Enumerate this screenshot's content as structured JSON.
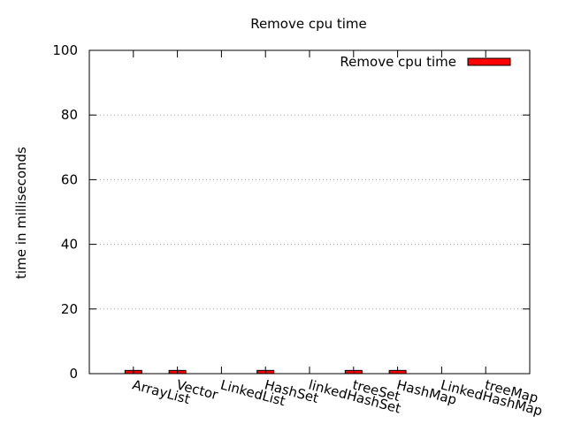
{
  "chart_data": {
    "type": "bar",
    "title": "Remove cpu time",
    "ylabel": "time in milliseconds",
    "xlabel": "",
    "categories": [
      "ArrayList",
      "Vector",
      "LinkedList",
      "HashSet",
      "linkedHashSet",
      "treeSet",
      "HashMap",
      "LinkedHashMap",
      "treeMap"
    ],
    "series": [
      {
        "name": "Remove cpu time",
        "values": [
          1,
          1,
          0,
          1,
          0,
          1,
          1,
          0,
          0
        ]
      }
    ],
    "ylim": [
      0,
      100
    ],
    "yticks": [
      "0",
      "20",
      "40",
      "60",
      "80",
      "100"
    ],
    "grid": "horizontal dotted",
    "legend_position": "top-right",
    "bar_color": "#ff0000"
  }
}
